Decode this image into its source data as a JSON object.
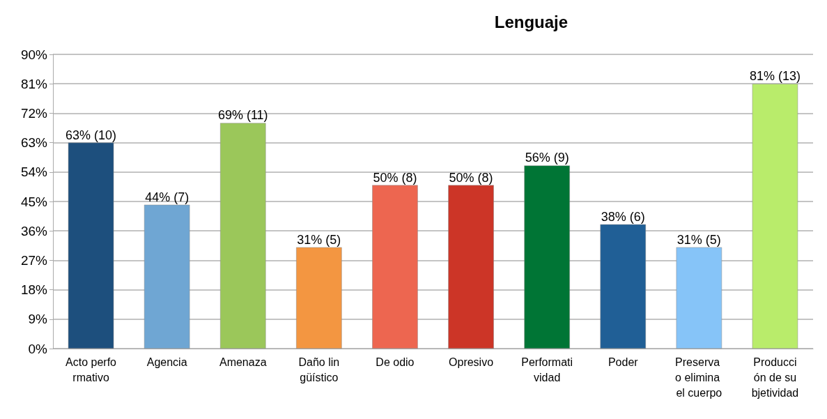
{
  "chart_data": {
    "type": "bar",
    "title": "Lenguaje",
    "categories": [
      "Acto performativo",
      "Agencia",
      "Amenaza",
      "Daño lingüístico",
      "De odio",
      "Opresivo",
      "Performatividad",
      "Poder",
      "Preserva o elimina el cuerpo",
      "Producción de subjetividad"
    ],
    "values": [
      63,
      44,
      69,
      31,
      50,
      50,
      56,
      38,
      31,
      81
    ],
    "colors": [
      "#1d4f7d",
      "#6fa6d3",
      "#9bc75a",
      "#f39641",
      "#ed6650",
      "#cc3527",
      "#007535",
      "#205f96",
      "#86c4f8",
      "#b9ec6b"
    ],
    "value_labels": [
      "63% (10)",
      "44% (7)",
      "69% (11)",
      "31% (5)",
      "50% (8)",
      "50% (8)",
      "56% (9)",
      "38% (6)",
      "31% (5)",
      "81% (13)"
    ],
    "ylim": [
      0,
      90
    ],
    "yticks": [
      {
        "value": 0,
        "label": "0%"
      },
      {
        "value": 9,
        "label": "9%"
      },
      {
        "value": 18,
        "label": "18%"
      },
      {
        "value": 27,
        "label": "27%"
      },
      {
        "value": 36,
        "label": "36%"
      },
      {
        "value": 45,
        "label": "45%"
      },
      {
        "value": 54,
        "label": "54%"
      },
      {
        "value": 63,
        "label": "63%"
      },
      {
        "value": 72,
        "label": "72%"
      },
      {
        "value": 81,
        "label": "81%"
      },
      {
        "value": 90,
        "label": "90%"
      }
    ],
    "grid": "y"
  }
}
